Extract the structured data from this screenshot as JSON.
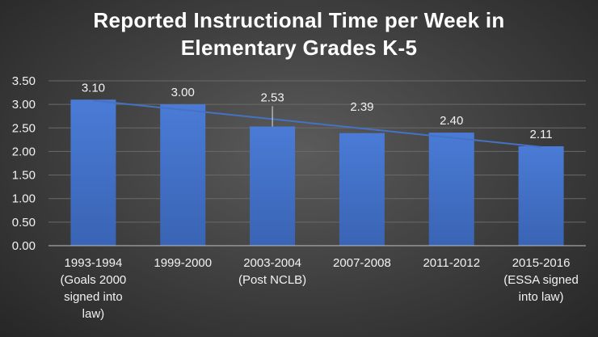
{
  "chart_data": {
    "type": "bar",
    "title_lines": [
      "Reported Instructional Time per Week in",
      "Elementary Grades K-5"
    ],
    "categories": [
      [
        "1993-1994",
        "(Goals 2000",
        "signed into",
        "law)"
      ],
      [
        "1999-2000"
      ],
      [
        "2003-2004",
        "(Post NCLB)"
      ],
      [
        "2007-2008"
      ],
      [
        "2011-2012"
      ],
      [
        "2015-2016",
        "(ESSA signed",
        "into law)"
      ]
    ],
    "values": [
      3.1,
      3.0,
      2.53,
      2.39,
      2.4,
      2.11
    ],
    "value_labels": [
      "3.10",
      "3.00",
      "2.53",
      "2.39",
      "2.40",
      "2.11"
    ],
    "y_ticks": [
      "0.00",
      "0.50",
      "1.00",
      "1.50",
      "2.00",
      "2.50",
      "3.00",
      "3.50"
    ],
    "ylim": [
      0,
      3.5
    ],
    "grid": true,
    "trendline": "linear",
    "colors": {
      "bar": "#4472c4",
      "trendline": "#4472c4",
      "gridline": "#6a6a6a"
    }
  }
}
